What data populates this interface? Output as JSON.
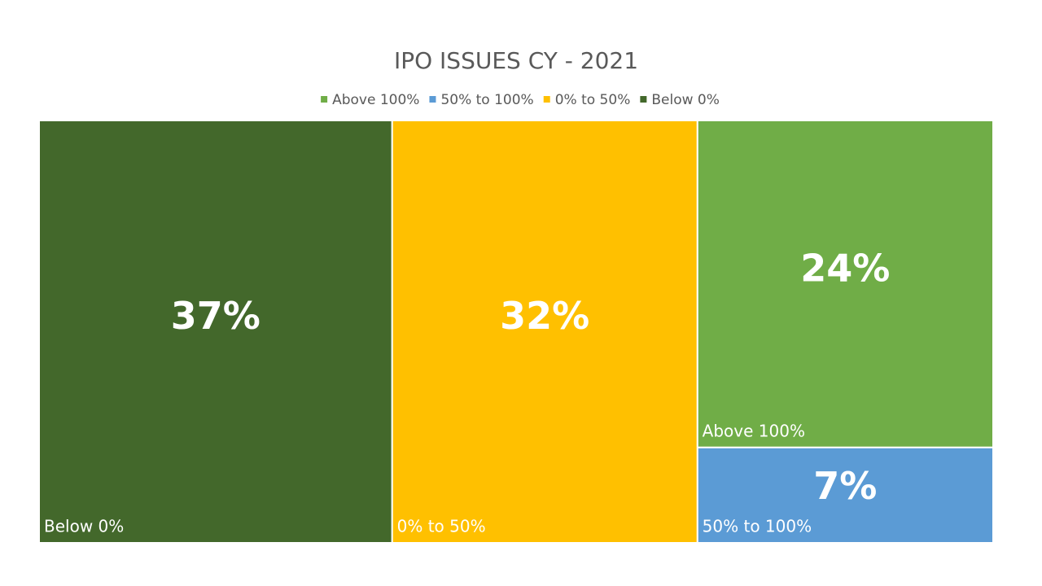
{
  "chart_data": {
    "type": "treemap",
    "title": "IPO ISSUES CY - 2021",
    "categories": [
      "Above 100%",
      "50% to 100%",
      "0% to 50%",
      "Below 0%"
    ],
    "values": [
      24,
      7,
      32,
      37
    ],
    "value_labels": [
      "24%",
      "7%",
      "32%",
      "37%"
    ],
    "colors": [
      "#70ad47",
      "#5b9bd5",
      "#ffc000",
      "#43682b"
    ],
    "legend": "top"
  }
}
